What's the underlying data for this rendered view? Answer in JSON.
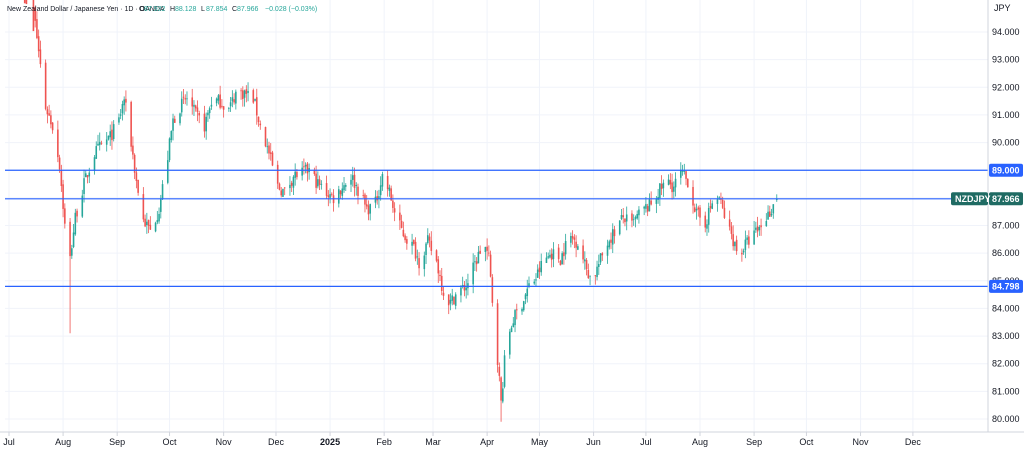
{
  "header": {
    "symbol_description": "New Zealand Dollar / Japanese Yen · 1D · OANDA",
    "ohlc": [
      {
        "label": "O",
        "value": "87.922"
      },
      {
        "label": "H",
        "value": "88.128"
      },
      {
        "label": "L",
        "value": "87.854"
      },
      {
        "label": "C",
        "value": "87.966"
      }
    ],
    "change": "−0.028 (−0.03%)"
  },
  "axis": {
    "currency": "JPY"
  },
  "colors": {
    "up": "#26a69a",
    "down": "#ef5350",
    "hline": "#2962ff",
    "grid": "#f0f3fa",
    "axis_line": "#d1d4dc",
    "tag_dark": "#1f6b63"
  },
  "chart_data": {
    "type": "candlestick",
    "y_ticks": [
      80,
      81,
      82,
      83,
      84,
      85,
      86,
      87,
      88,
      89,
      90,
      91,
      92,
      93,
      94
    ],
    "y_tick_labels": [
      "80.000",
      "81.000",
      "82.000",
      "83.000",
      "84.000",
      "85.000",
      "86.000",
      "87.000",
      "88.000",
      "89.000",
      "90.000",
      "91.000",
      "92.000",
      "93.000",
      "94.000"
    ],
    "ylim": [
      79.6,
      95.2
    ],
    "x_range": [
      "2024-07-01",
      "2025-12-28"
    ],
    "month_labels": [
      {
        "date": "2024-07-01",
        "label": "Jul"
      },
      {
        "date": "2024-08-01",
        "label": "Aug"
      },
      {
        "date": "2024-09-01",
        "label": "Sep"
      },
      {
        "date": "2024-10-01",
        "label": "Oct"
      },
      {
        "date": "2024-11-01",
        "label": "Nov"
      },
      {
        "date": "2024-12-01",
        "label": "Dec"
      },
      {
        "date": "2025-01-01",
        "label": "2025"
      },
      {
        "date": "2025-02-01",
        "label": "Feb"
      },
      {
        "date": "2025-03-01",
        "label": "Mar"
      },
      {
        "date": "2025-04-01",
        "label": "Apr"
      },
      {
        "date": "2025-05-01",
        "label": "May"
      },
      {
        "date": "2025-06-01",
        "label": "Jun"
      },
      {
        "date": "2025-07-01",
        "label": "Jul"
      },
      {
        "date": "2025-08-01",
        "label": "Aug"
      },
      {
        "date": "2025-09-01",
        "label": "Sep"
      },
      {
        "date": "2025-10-01",
        "label": "Oct"
      },
      {
        "date": "2025-11-01",
        "label": "Nov"
      },
      {
        "date": "2025-12-01",
        "label": "Dec"
      }
    ],
    "horizontal_lines": [
      {
        "price": 89.0,
        "label": "89.000"
      },
      {
        "price": 87.966,
        "label": "87.966",
        "symbol": "NZDJPY"
      },
      {
        "price": 84.798,
        "label": "84.798"
      }
    ],
    "close_path": [
      [
        "2024-07-10",
        96.8
      ],
      [
        "2024-07-15",
        94.8
      ],
      [
        "2024-07-18",
        93.3
      ],
      [
        "2024-07-22",
        91.3
      ],
      [
        "2024-07-26",
        90.6
      ],
      [
        "2024-07-30",
        89.2
      ],
      [
        "2024-08-02",
        87.0
      ],
      [
        "2024-08-05",
        85.8
      ],
      [
        "2024-08-08",
        87.3
      ],
      [
        "2024-08-13",
        88.5
      ],
      [
        "2024-08-19",
        89.6
      ],
      [
        "2024-08-23",
        89.9
      ],
      [
        "2024-08-28",
        90.2
      ],
      [
        "2024-09-02",
        90.8
      ],
      [
        "2024-09-05",
        91.6
      ],
      [
        "2024-09-09",
        90.0
      ],
      [
        "2024-09-12",
        88.6
      ],
      [
        "2024-09-16",
        87.2
      ],
      [
        "2024-09-20",
        86.8
      ],
      [
        "2024-09-25",
        87.6
      ],
      [
        "2024-09-30",
        89.5
      ],
      [
        "2024-10-03",
        90.8
      ],
      [
        "2024-10-07",
        91.3
      ],
      [
        "2024-10-11",
        91.6
      ],
      [
        "2024-10-16",
        91.0
      ],
      [
        "2024-10-21",
        90.6
      ],
      [
        "2024-10-25",
        91.5
      ],
      [
        "2024-10-30",
        91.5
      ],
      [
        "2024-11-04",
        91.2
      ],
      [
        "2024-11-08",
        91.8
      ],
      [
        "2024-11-13",
        91.8
      ],
      [
        "2024-11-18",
        91.6
      ],
      [
        "2024-11-22",
        90.6
      ],
      [
        "2024-11-27",
        89.6
      ],
      [
        "2024-12-02",
        88.4
      ],
      [
        "2024-12-06",
        88.2
      ],
      [
        "2024-12-11",
        88.8
      ],
      [
        "2024-12-16",
        88.9
      ],
      [
        "2024-12-20",
        89.0
      ],
      [
        "2024-12-25",
        88.5
      ],
      [
        "2024-12-30",
        88.2
      ],
      [
        "2025-01-03",
        88.0
      ],
      [
        "2025-01-08",
        88.4
      ],
      [
        "2025-01-13",
        88.8
      ],
      [
        "2025-01-17",
        88.3
      ],
      [
        "2025-01-22",
        87.6
      ],
      [
        "2025-01-27",
        87.8
      ],
      [
        "2025-01-31",
        88.8
      ],
      [
        "2025-02-04",
        88.2
      ],
      [
        "2025-02-08",
        87.2
      ],
      [
        "2025-02-13",
        86.6
      ],
      [
        "2025-02-18",
        86.2
      ],
      [
        "2025-02-21",
        85.7
      ],
      [
        "2025-02-26",
        86.4
      ],
      [
        "2025-03-03",
        85.7
      ],
      [
        "2025-03-07",
        84.6
      ],
      [
        "2025-03-11",
        84.2
      ],
      [
        "2025-03-15",
        84.6
      ],
      [
        "2025-03-20",
        84.8
      ],
      [
        "2025-03-25",
        85.6
      ],
      [
        "2025-03-30",
        86.4
      ],
      [
        "2025-04-02",
        85.8
      ],
      [
        "2025-04-04",
        84.3
      ],
      [
        "2025-04-07",
        82.2
      ],
      [
        "2025-04-09",
        80.6
      ],
      [
        "2025-04-12",
        82.8
      ],
      [
        "2025-04-16",
        83.6
      ],
      [
        "2025-04-21",
        84.2
      ],
      [
        "2025-04-25",
        84.8
      ],
      [
        "2025-04-29",
        85.1
      ],
      [
        "2025-05-03",
        85.7
      ],
      [
        "2025-05-08",
        86.0
      ],
      [
        "2025-05-13",
        85.8
      ],
      [
        "2025-05-18",
        86.6
      ],
      [
        "2025-05-23",
        86.4
      ],
      [
        "2025-05-27",
        85.6
      ],
      [
        "2025-05-31",
        85.0
      ],
      [
        "2025-06-04",
        85.6
      ],
      [
        "2025-06-09",
        86.4
      ],
      [
        "2025-06-13",
        86.8
      ],
      [
        "2025-06-18",
        87.3
      ],
      [
        "2025-06-23",
        87.0
      ],
      [
        "2025-06-28",
        87.5
      ],
      [
        "2025-07-03",
        87.7
      ],
      [
        "2025-07-08",
        88.2
      ],
      [
        "2025-07-13",
        88.6
      ],
      [
        "2025-07-17",
        88.4
      ],
      [
        "2025-07-21",
        88.9
      ],
      [
        "2025-07-25",
        88.6
      ],
      [
        "2025-07-30",
        87.4
      ],
      [
        "2025-08-04",
        87.1
      ],
      [
        "2025-08-08",
        87.8
      ],
      [
        "2025-08-12",
        88.0
      ],
      [
        "2025-08-16",
        87.1
      ],
      [
        "2025-08-20",
        86.5
      ],
      [
        "2025-08-23",
        85.9
      ],
      [
        "2025-08-27",
        86.3
      ],
      [
        "2025-08-31",
        86.6
      ],
      [
        "2025-09-04",
        86.9
      ],
      [
        "2025-09-08",
        87.3
      ],
      [
        "2025-09-11",
        87.6
      ],
      [
        "2025-09-14",
        87.966
      ]
    ]
  }
}
